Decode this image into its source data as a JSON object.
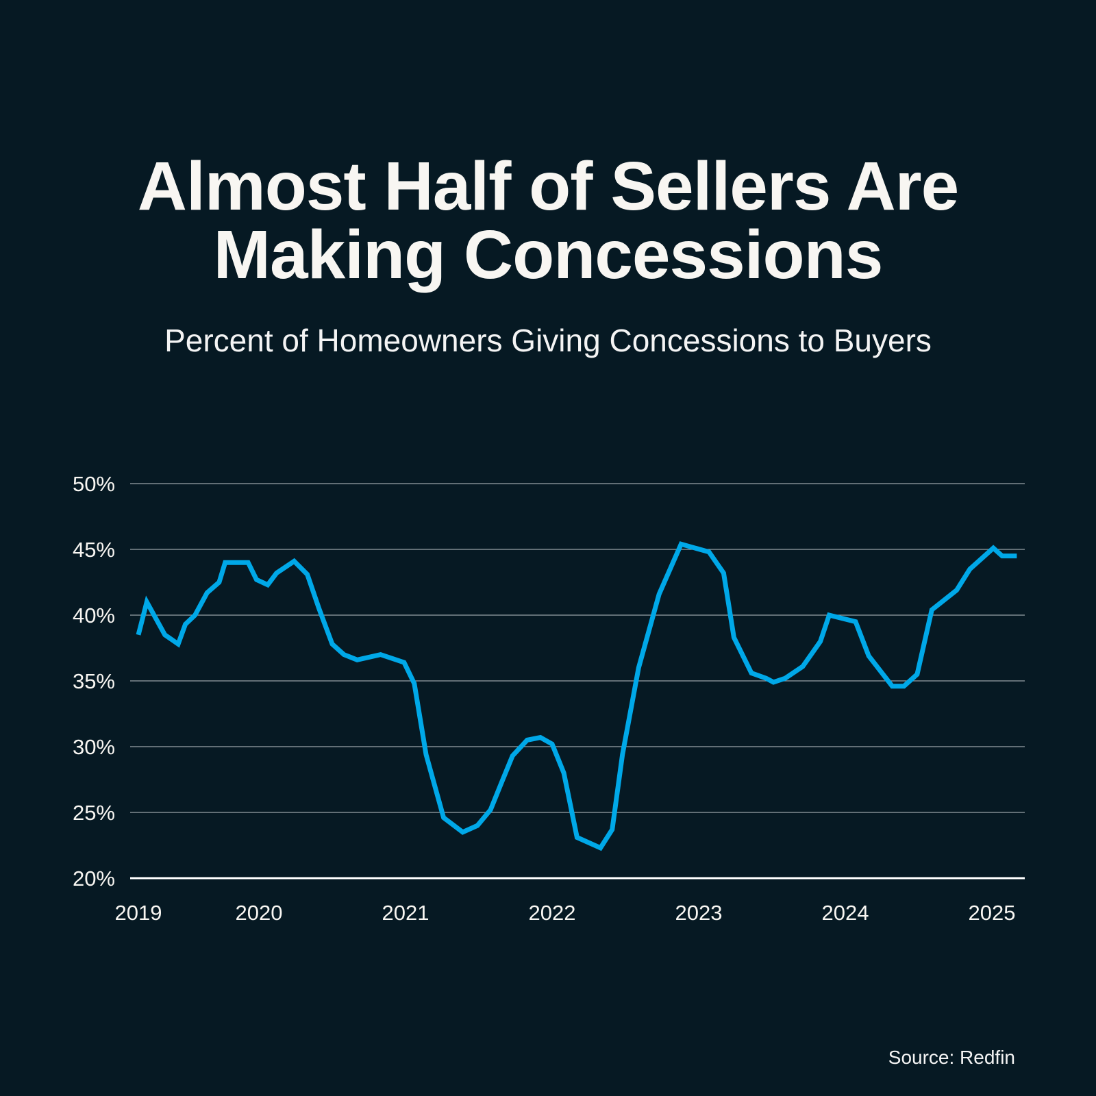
{
  "header": {
    "title_lines": [
      "Almost Half of Sellers Are",
      "Making Concessions"
    ],
    "subtitle": "Percent of Homeowners Giving Concessions to Buyers"
  },
  "footer": {
    "source": "Source: Redfin"
  },
  "colors": {
    "background": "#061923",
    "line": "#00a8e8",
    "grid": "#9aa3a8",
    "baseline": "#ffffff",
    "text": "#f8f6f2"
  },
  "chart_data": {
    "type": "line",
    "title": "Almost Half of Sellers Are Making Concessions",
    "subtitle": "Percent of Homeowners Giving Concessions to Buyers",
    "xlabel": "",
    "ylabel": "",
    "ylim": [
      20,
      50
    ],
    "yticks": [
      20,
      25,
      30,
      35,
      40,
      45,
      50
    ],
    "ytick_labels": [
      "20%",
      "25%",
      "30%",
      "35%",
      "40%",
      "45%",
      "50%"
    ],
    "xticks": [
      2019,
      2020,
      2021,
      2022,
      2023,
      2024,
      2025
    ],
    "xtick_labels": [
      "2019",
      "2020",
      "2021",
      "2022",
      "2023",
      "2024",
      "2025"
    ],
    "xlim": [
      2019.0,
      2025.24
    ],
    "grid": true,
    "legend": "none",
    "series": [
      {
        "name": "Percent of homeowners giving concessions",
        "x": [
          2019.0,
          2019.07,
          2019.22,
          2019.33,
          2019.39,
          2019.47,
          2019.57,
          2019.67,
          2019.72,
          2019.91,
          2019.98,
          2020.06,
          2020.12,
          2020.24,
          2020.33,
          2020.41,
          2020.5,
          2020.58,
          2020.67,
          2020.83,
          2020.99,
          2021.06,
          2021.14,
          2021.26,
          2021.39,
          2021.49,
          2021.58,
          2021.66,
          2021.73,
          2021.83,
          2021.92,
          2022.0,
          2022.08,
          2022.17,
          2022.33,
          2022.41,
          2022.48,
          2022.59,
          2022.73,
          2022.88,
          2023.07,
          2023.17,
          2023.24,
          2023.36,
          2023.46,
          2023.51,
          2023.59,
          2023.71,
          2023.83,
          2023.89,
          2024.07,
          2024.16,
          2024.32,
          2024.4,
          2024.49,
          2024.59,
          2024.76,
          2024.85,
          2025.01,
          2025.07,
          2025.17
        ],
        "values": [
          38.5,
          41.0,
          38.5,
          37.8,
          39.3,
          40.0,
          41.7,
          42.5,
          44.0,
          44.0,
          42.7,
          42.3,
          43.2,
          44.1,
          43.1,
          40.5,
          37.8,
          37.0,
          36.6,
          37.0,
          36.4,
          34.8,
          29.4,
          24.6,
          23.5,
          24.0,
          25.2,
          27.4,
          29.3,
          30.5,
          30.7,
          30.2,
          28.0,
          23.1,
          22.3,
          23.7,
          29.4,
          36.0,
          41.6,
          45.4,
          44.8,
          43.2,
          38.3,
          35.6,
          35.2,
          34.9,
          35.2,
          36.1,
          38.0,
          40.0,
          39.5,
          36.9,
          34.6,
          34.6,
          35.5,
          40.4,
          41.9,
          43.5,
          45.1,
          44.5,
          44.5
        ]
      }
    ]
  }
}
